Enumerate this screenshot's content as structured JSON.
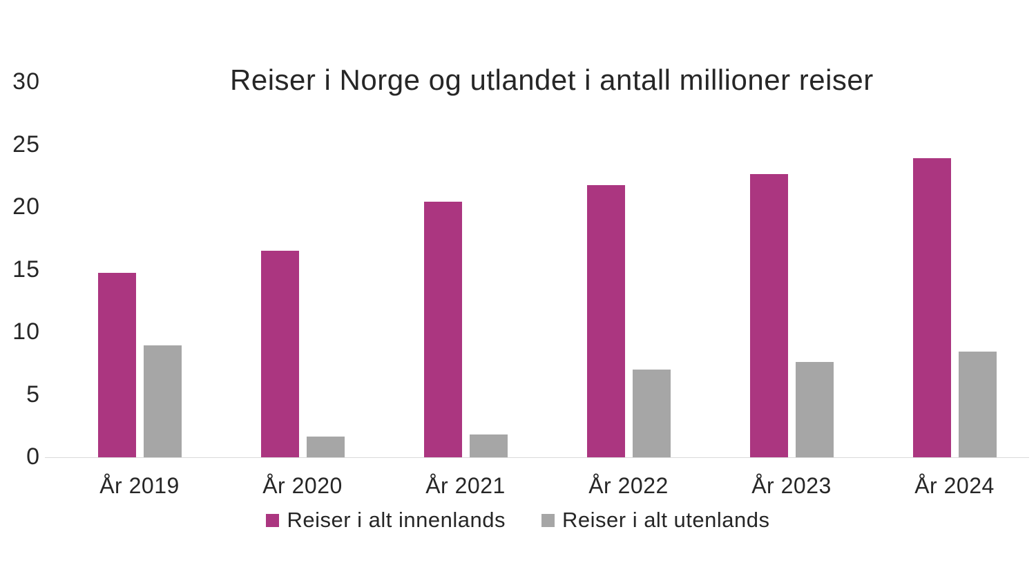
{
  "chart_data": {
    "type": "bar",
    "title": "Reiser i Norge og utlandet i antall millioner reiser",
    "categories": [
      "År 2019",
      "År 2020",
      "År 2021",
      "År 2022",
      "År 2023",
      "År 2024"
    ],
    "series": [
      {
        "name": "Reiser i alt innenlands",
        "color": "#AB3680",
        "values": [
          14.8,
          16.6,
          20.5,
          21.8,
          22.7,
          24.0
        ]
      },
      {
        "name": "Reiser i alt utenlands",
        "color": "#A6A6A6",
        "values": [
          9.0,
          1.7,
          1.9,
          7.1,
          7.7,
          8.5
        ]
      }
    ],
    "xlabel": "",
    "ylabel": "",
    "y_ticks": [
      0,
      5,
      10,
      15,
      20,
      25,
      30
    ],
    "ylim": [
      0,
      30
    ],
    "grid": false,
    "legend_position": "bottom",
    "axis_line_color": "#D9D9D9",
    "text_color": "#262626",
    "background_color": "#FFFFFF"
  }
}
